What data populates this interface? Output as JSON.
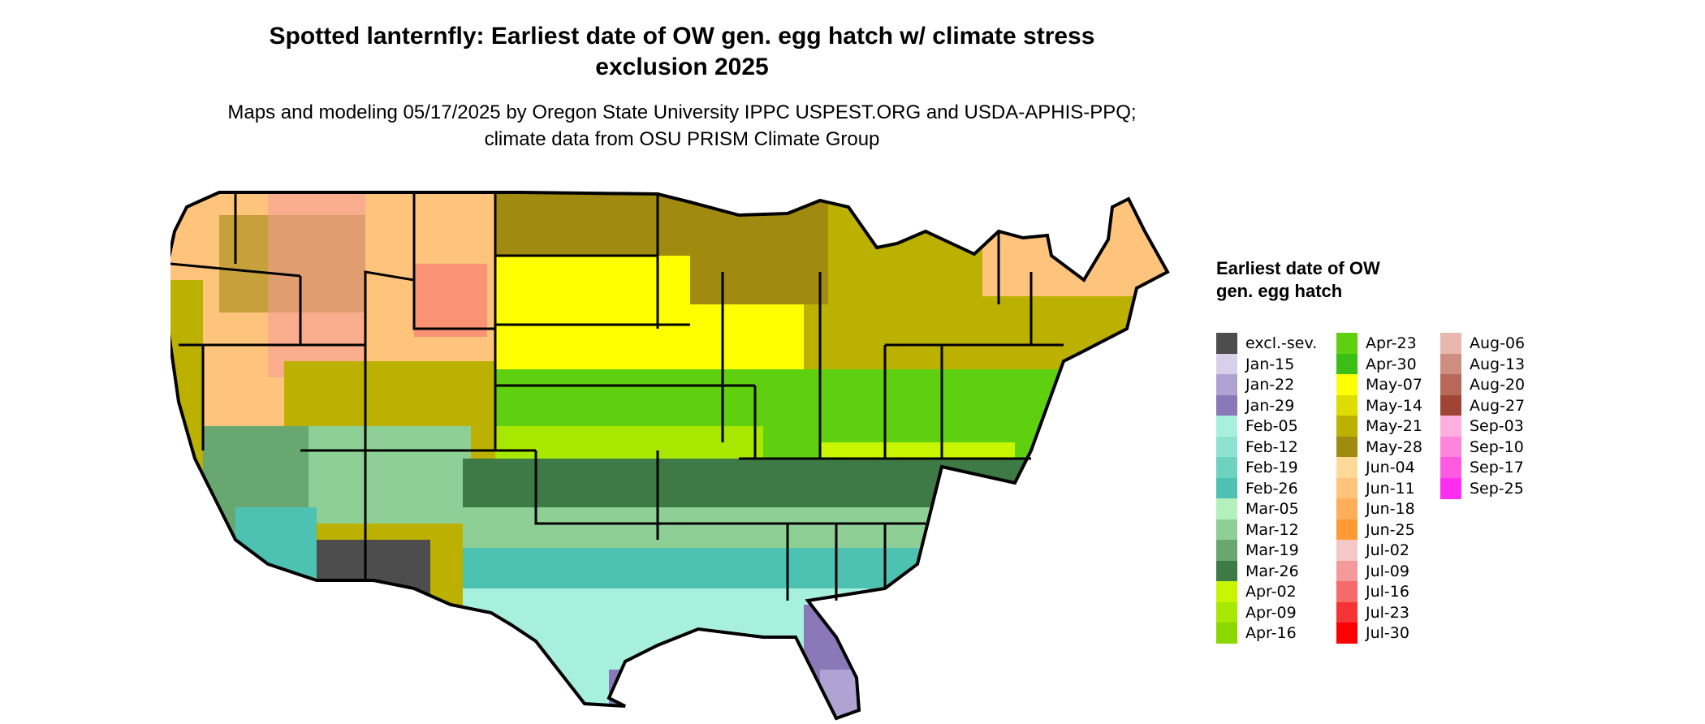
{
  "title": "Spotted lanternfly: Earliest date of OW gen. egg hatch w/ climate stress exclusion 2025",
  "subtitle": "Maps and modeling 05/17/2025 by Oregon State University IPPC USPEST.ORG and USDA-APHIS-PPQ; climate data from OSU PRISM Climate Group",
  "legend": {
    "title": "Earliest date of OW gen. egg hatch",
    "columns": [
      [
        {
          "label": "excl.-sev.",
          "color": "#4d4d4d"
        },
        {
          "label": "Jan-15",
          "color": "#d8d0ea"
        },
        {
          "label": "Jan-22",
          "color": "#b0a3d4"
        },
        {
          "label": "Jan-29",
          "color": "#8a78b8"
        },
        {
          "label": "Feb-05",
          "color": "#a8f0de"
        },
        {
          "label": "Feb-12",
          "color": "#8ee3d0"
        },
        {
          "label": "Feb-19",
          "color": "#6dd2c0"
        },
        {
          "label": "Feb-26",
          "color": "#4ec2b2"
        },
        {
          "label": "Mar-05",
          "color": "#b4f0bc"
        },
        {
          "label": "Mar-12",
          "color": "#8ecf96"
        },
        {
          "label": "Mar-19",
          "color": "#68a870"
        },
        {
          "label": "Mar-26",
          "color": "#3d7a45"
        },
        {
          "label": "Apr-02",
          "color": "#c8f500"
        },
        {
          "label": "Apr-09",
          "color": "#a8e800"
        },
        {
          "label": "Apr-16",
          "color": "#8ad800"
        }
      ],
      [
        {
          "label": "Apr-23",
          "color": "#5fd010"
        },
        {
          "label": "Apr-30",
          "color": "#3cbf14"
        },
        {
          "label": "May-07",
          "color": "#ffff00"
        },
        {
          "label": "May-14",
          "color": "#dddd00"
        },
        {
          "label": "May-21",
          "color": "#bcb000"
        },
        {
          "label": "May-28",
          "color": "#a08a10"
        },
        {
          "label": "Jun-04",
          "color": "#ffd99a"
        },
        {
          "label": "Jun-11",
          "color": "#ffc47c"
        },
        {
          "label": "Jun-18",
          "color": "#ffae5c"
        },
        {
          "label": "Jun-25",
          "color": "#ff9a36"
        },
        {
          "label": "Jul-02",
          "color": "#f5c8c8"
        },
        {
          "label": "Jul-09",
          "color": "#f59a9a"
        },
        {
          "label": "Jul-16",
          "color": "#f56b6b"
        },
        {
          "label": "Jul-23",
          "color": "#f53535"
        },
        {
          "label": "Jul-30",
          "color": "#ff0000"
        }
      ],
      [
        {
          "label": "Aug-06",
          "color": "#e8b7ae"
        },
        {
          "label": "Aug-13",
          "color": "#cf8e82"
        },
        {
          "label": "Aug-20",
          "color": "#b86858"
        },
        {
          "label": "Aug-27",
          "color": "#a04535"
        },
        {
          "label": "Sep-03",
          "color": "#ffaee0"
        },
        {
          "label": "Sep-10",
          "color": "#ff86dc"
        },
        {
          "label": "Sep-17",
          "color": "#ff5ae2"
        },
        {
          "label": "Sep-25",
          "color": "#ff2ef0"
        }
      ]
    ]
  }
}
